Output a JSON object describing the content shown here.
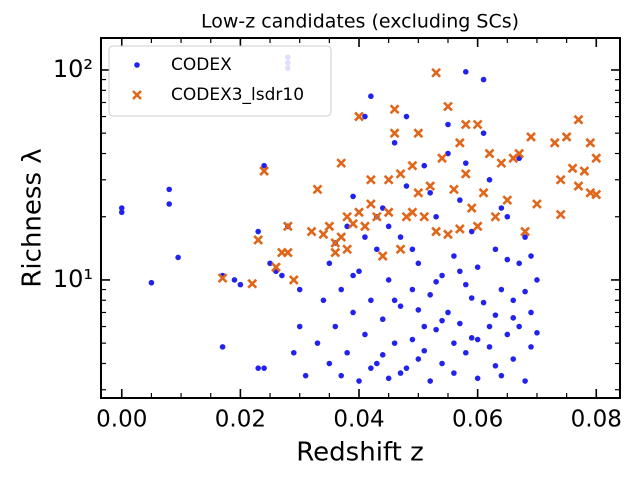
{
  "chart_data": {
    "type": "scatter",
    "title": "Low-z candidates (excluding SCs)",
    "x_label": "Redshift z",
    "y_label": "Richness λ",
    "xlim": [
      -0.0035,
      0.084
    ],
    "ylim": [
      2.74,
      142
    ],
    "y_scale": "log",
    "xticks": [
      {
        "value": 0,
        "label": "0.00"
      },
      0.02,
      0.04,
      0.06,
      0.08
    ],
    "yticks": [
      {
        "value": 10,
        "label": "10¹"
      },
      {
        "value": 100,
        "label": "10²"
      }
    ],
    "xminorticks": [
      0.005,
      0.01,
      0.015,
      0.025,
      0.03,
      0.035,
      0.045,
      0.05,
      0.055,
      0.065,
      0.07,
      0.075
    ],
    "yminorticks": [
      3,
      4,
      5,
      6,
      7,
      8,
      9,
      20,
      30,
      40,
      50,
      60,
      70,
      80,
      90
    ],
    "grid": false,
    "legend": "upper left",
    "series": [
      {
        "name": "CODEX",
        "color": "#2222ee",
        "marker": "o",
        "x": [
          0.0,
          0.0,
          0.005,
          0.008,
          0.008,
          0.0095,
          0.017,
          0.017,
          0.019,
          0.02,
          0.023,
          0.023,
          0.024,
          0.024,
          0.025,
          0.026,
          0.027,
          0.028,
          0.028,
          0.028,
          0.028,
          0.029,
          0.03,
          0.03,
          0.031,
          0.033,
          0.034,
          0.035,
          0.035,
          0.036,
          0.036,
          0.037,
          0.037,
          0.038,
          0.038,
          0.039,
          0.039,
          0.04,
          0.04,
          0.041,
          0.041,
          0.042,
          0.042,
          0.043,
          0.043,
          0.044,
          0.044,
          0.045,
          0.045,
          0.046,
          0.046,
          0.047,
          0.047,
          0.048,
          0.048,
          0.049,
          0.049,
          0.05,
          0.05,
          0.051,
          0.051,
          0.052,
          0.052,
          0.053,
          0.053,
          0.054,
          0.054,
          0.055,
          0.055,
          0.056,
          0.056,
          0.057,
          0.057,
          0.058,
          0.058,
          0.059,
          0.059,
          0.06,
          0.06,
          0.061,
          0.061,
          0.062,
          0.062,
          0.063,
          0.063,
          0.064,
          0.064,
          0.065,
          0.065,
          0.066,
          0.066,
          0.067,
          0.067,
          0.068,
          0.068,
          0.069,
          0.069,
          0.07,
          0.07,
          0.044,
          0.047,
          0.05,
          0.053,
          0.056,
          0.059,
          0.062,
          0.065,
          0.068,
          0.045,
          0.049,
          0.052,
          0.055,
          0.058,
          0.061,
          0.064,
          0.067,
          0.046,
          0.051,
          0.054,
          0.057,
          0.06,
          0.063,
          0.066,
          0.069,
          0.042,
          0.039,
          0.041,
          0.043,
          0.048,
          0.058
        ],
        "values": [
          22,
          21,
          9.7,
          27,
          23,
          12.8,
          4.8,
          10.5,
          10,
          9.5,
          17,
          3.8,
          3.8,
          35,
          12,
          11,
          10.5,
          115,
          108,
          102,
          18,
          4.5,
          9,
          6,
          3.5,
          5,
          8,
          4,
          12,
          6,
          15,
          3.5,
          9,
          18,
          4.5,
          7,
          25,
          3.3,
          11,
          5.5,
          60,
          8,
          75,
          4,
          14,
          6.5,
          22,
          3.4,
          10,
          5,
          45,
          7.5,
          16,
          3.8,
          28,
          9,
          5.2,
          12,
          4.2,
          6,
          35,
          8.5,
          3.3,
          20,
          5.8,
          10.5,
          4,
          7,
          55,
          13,
          3.6,
          6.2,
          24,
          9.5,
          4.5,
          5.3,
          17,
          3.4,
          11.5,
          7.8,
          90,
          4.8,
          30,
          6.8,
          14,
          3.5,
          9,
          5.5,
          20,
          8,
          4.2,
          12,
          6,
          3.3,
          16,
          7,
          4.8,
          10,
          5.6,
          4.4,
          3.6,
          7.2,
          9.8,
          5,
          8.2,
          6,
          12.5,
          8.8,
          18,
          14,
          26,
          40,
          36,
          50,
          22,
          38,
          8,
          4.6,
          6.4,
          11,
          5.2,
          3.9,
          6.6,
          13,
          3.8,
          10.5,
          16,
          20,
          60,
          98
        ]
      },
      {
        "name": "CODEX3_lsdr10",
        "color": "#e0661a",
        "marker": "x",
        "x": [
          0.017,
          0.022,
          0.023,
          0.024,
          0.026,
          0.027,
          0.028,
          0.028,
          0.029,
          0.032,
          0.033,
          0.034,
          0.035,
          0.036,
          0.036,
          0.037,
          0.037,
          0.038,
          0.038,
          0.039,
          0.04,
          0.04,
          0.041,
          0.042,
          0.042,
          0.043,
          0.044,
          0.045,
          0.045,
          0.046,
          0.046,
          0.047,
          0.047,
          0.048,
          0.049,
          0.049,
          0.05,
          0.05,
          0.051,
          0.052,
          0.053,
          0.053,
          0.054,
          0.055,
          0.055,
          0.056,
          0.057,
          0.057,
          0.058,
          0.058,
          0.059,
          0.06,
          0.06,
          0.061,
          0.062,
          0.063,
          0.064,
          0.065,
          0.066,
          0.067,
          0.068,
          0.069,
          0.07,
          0.073,
          0.074,
          0.074,
          0.075,
          0.076,
          0.077,
          0.077,
          0.078,
          0.079,
          0.079,
          0.08,
          0.08
        ],
        "values": [
          10.2,
          9.6,
          15.5,
          33,
          11.5,
          13.5,
          13.5,
          18,
          10,
          17,
          27,
          16.5,
          18,
          15,
          13.5,
          16,
          36,
          14,
          20,
          18.5,
          21,
          60,
          18,
          30,
          23,
          20,
          13,
          21,
          30,
          65,
          50,
          14,
          32,
          20,
          35,
          21,
          50,
          26,
          20,
          28,
          97,
          17,
          38,
          67,
          16.5,
          27,
          45,
          17.5,
          55,
          32,
          22,
          55,
          18,
          26,
          40,
          20,
          36,
          24,
          38,
          40,
          17,
          48,
          23,
          45,
          30,
          20.5,
          48,
          34,
          28,
          58,
          33,
          26,
          45,
          38,
          25.5
        ]
      }
    ]
  }
}
